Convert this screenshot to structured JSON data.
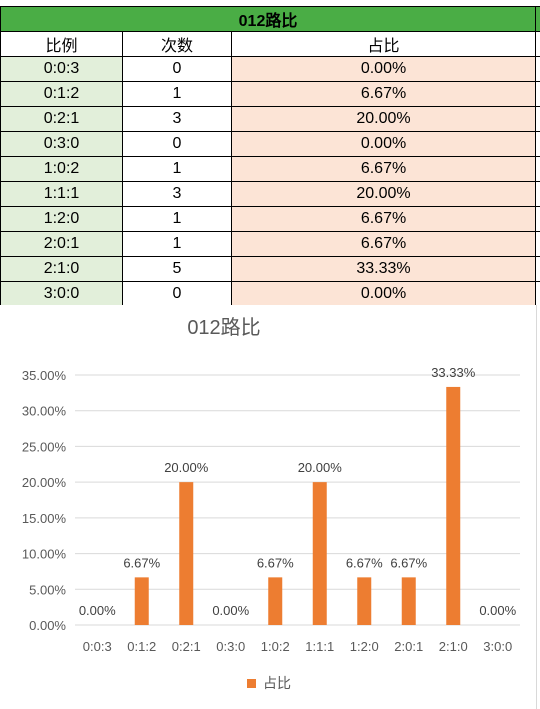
{
  "table": {
    "title": "012路比",
    "headers": [
      "比例",
      "次数",
      "占比"
    ],
    "rows": [
      [
        "0:0:3",
        "0",
        "0.00%"
      ],
      [
        "0:1:2",
        "1",
        "6.67%"
      ],
      [
        "0:2:1",
        "3",
        "20.00%"
      ],
      [
        "0:3:0",
        "0",
        "0.00%"
      ],
      [
        "1:0:2",
        "1",
        "6.67%"
      ],
      [
        "1:1:1",
        "3",
        "20.00%"
      ],
      [
        "1:2:0",
        "1",
        "6.67%"
      ],
      [
        "2:0:1",
        "1",
        "6.67%"
      ],
      [
        "2:1:0",
        "5",
        "33.33%"
      ],
      [
        "3:0:0",
        "0",
        "0.00%"
      ]
    ]
  },
  "chart_data": {
    "type": "bar",
    "title": "012路比",
    "categories": [
      "0:0:3",
      "0:1:2",
      "0:2:1",
      "0:3:0",
      "1:0:2",
      "1:1:1",
      "1:2:0",
      "2:0:1",
      "2:1:0",
      "3:0:0"
    ],
    "series": [
      {
        "name": "占比",
        "values": [
          0.0,
          6.67,
          20.0,
          0.0,
          6.67,
          20.0,
          6.67,
          6.67,
          33.33,
          0.0
        ],
        "labels": [
          "0.00%",
          "6.67%",
          "20.00%",
          "0.00%",
          "6.67%",
          "20.00%",
          "6.67%",
          "6.67%",
          "33.33%",
          "0.00%"
        ],
        "color": "#ed7d31"
      }
    ],
    "yticks": [
      "0.00%",
      "5.00%",
      "10.00%",
      "15.00%",
      "20.00%",
      "25.00%",
      "30.00%",
      "35.00%"
    ],
    "ytick_values": [
      0,
      5,
      10,
      15,
      20,
      25,
      30,
      35
    ],
    "ylim": [
      0,
      35
    ],
    "grid": true,
    "legend": "bottom"
  },
  "colors": {
    "header_green": "#4aad45",
    "light_green": "#e2efda",
    "peach": "#fce4d6",
    "bar": "#ed7d31",
    "gridline": "#d9d9d9",
    "text_gray": "#595959"
  }
}
